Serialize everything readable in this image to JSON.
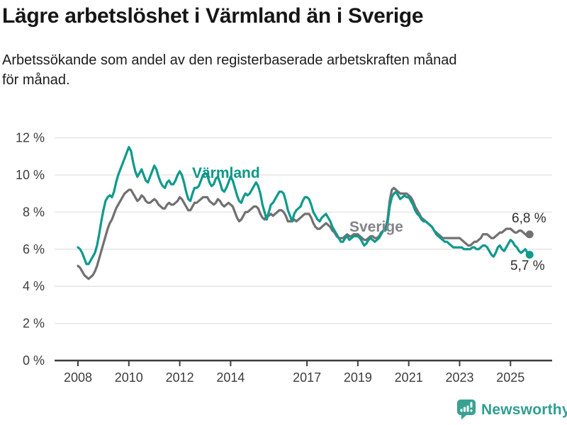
{
  "header": {
    "title": "Lägre arbetslöshet i Värmland än i Sverige",
    "subtitle_line1": "Arbetssökande som andel av den registerbaserade arbetskraften månad",
    "subtitle_line2": "för månad."
  },
  "chart": {
    "series_labels": {
      "varmland": "Värmland",
      "sverige": "Sverige"
    },
    "end_labels": {
      "sverige": "6,8 %",
      "varmland": "5,7 %"
    },
    "y_ticks": [
      {
        "label": "12 %",
        "value": 12
      },
      {
        "label": "10 %",
        "value": 10
      },
      {
        "label": "8 %",
        "value": 8
      },
      {
        "label": "6 %",
        "value": 6
      },
      {
        "label": "4 %",
        "value": 4
      },
      {
        "label": "2 %",
        "value": 2
      },
      {
        "label": "0 %",
        "value": 0
      }
    ],
    "x_ticks": [
      {
        "label": "2008",
        "year": 2008
      },
      {
        "label": "2010",
        "year": 2010
      },
      {
        "label": "2012",
        "year": 2012
      },
      {
        "label": "2014",
        "year": 2014
      },
      {
        "label": "2017",
        "year": 2017
      },
      {
        "label": "2019",
        "year": 2019
      },
      {
        "label": "2021",
        "year": 2021
      },
      {
        "label": "2023",
        "year": 2023
      },
      {
        "label": "2025",
        "year": 2025
      }
    ],
    "colors": {
      "varmland": "#109a8d",
      "sverige": "#717174",
      "grid": "#e2e2e2",
      "axis": "#3d3d3d",
      "text": "#3d3d3d"
    }
  },
  "chart_data": {
    "type": "line",
    "title": "Lägre arbetslöshet i Värmland än i Sverige",
    "subtitle": "Arbetssökande som andel av den registerbaserade arbetskraften månad för månad.",
    "unit": "%",
    "ylim": [
      0,
      12
    ],
    "y_tick_values": [
      0,
      2,
      4,
      6,
      8,
      10,
      12
    ],
    "x_tick_labels": [
      "2008",
      "2010",
      "2012",
      "2014",
      "2017",
      "2019",
      "2021",
      "2023",
      "2025"
    ],
    "frequency": "monthly",
    "period_start": "2008-01",
    "period_end": "2025-10",
    "grid": true,
    "legend_position": "inline-labels",
    "series": [
      {
        "name": "Sverige",
        "color": "#717174",
        "latest_value": 6.8,
        "latest_label": "6,8 %",
        "values": [
          5.1,
          5.0,
          4.8,
          4.6,
          4.5,
          4.4,
          4.5,
          4.6,
          4.8,
          5.1,
          5.5,
          5.9,
          6.3,
          6.7,
          7.1,
          7.4,
          7.6,
          7.9,
          8.2,
          8.4,
          8.6,
          8.8,
          9.0,
          9.1,
          9.2,
          9.2,
          9.0,
          8.8,
          8.6,
          8.7,
          8.9,
          8.8,
          8.6,
          8.5,
          8.5,
          8.6,
          8.7,
          8.6,
          8.4,
          8.3,
          8.2,
          8.2,
          8.4,
          8.5,
          8.4,
          8.4,
          8.5,
          8.6,
          8.8,
          8.7,
          8.5,
          8.3,
          8.1,
          8.1,
          8.3,
          8.5,
          8.5,
          8.6,
          8.7,
          8.8,
          8.8,
          8.8,
          8.6,
          8.5,
          8.4,
          8.5,
          8.7,
          8.6,
          8.4,
          8.3,
          8.4,
          8.5,
          8.4,
          8.3,
          8.0,
          7.7,
          7.5,
          7.6,
          7.8,
          8.0,
          8.0,
          8.1,
          8.2,
          8.3,
          8.3,
          8.2,
          7.9,
          7.7,
          7.6,
          7.8,
          7.8,
          7.9,
          7.8,
          7.9,
          8.0,
          8.1,
          8.1,
          8.0,
          7.8,
          7.5,
          7.5,
          7.5,
          7.6,
          7.5,
          7.6,
          7.7,
          7.8,
          7.9,
          7.9,
          7.9,
          7.7,
          7.4,
          7.2,
          7.1,
          7.1,
          7.2,
          7.3,
          7.4,
          7.3,
          7.2,
          7.0,
          6.9,
          6.7,
          6.6,
          6.6,
          6.6,
          6.7,
          6.8,
          6.7,
          6.7,
          6.8,
          6.8,
          6.8,
          6.7,
          6.6,
          6.5,
          6.5,
          6.6,
          6.7,
          6.7,
          6.6,
          6.6,
          6.7,
          6.9,
          7.0,
          7.1,
          7.6,
          8.6,
          9.2,
          9.3,
          9.2,
          9.1,
          9.0,
          9.0,
          9.0,
          9.0,
          8.9,
          8.8,
          8.6,
          8.3,
          8.1,
          7.9,
          7.7,
          7.6,
          7.5,
          7.4,
          7.3,
          7.2,
          7.0,
          6.9,
          6.8,
          6.7,
          6.6,
          6.6,
          6.6,
          6.6,
          6.6,
          6.6,
          6.6,
          6.6,
          6.6,
          6.5,
          6.4,
          6.3,
          6.2,
          6.2,
          6.3,
          6.4,
          6.4,
          6.5,
          6.6,
          6.8,
          6.8,
          6.8,
          6.7,
          6.6,
          6.6,
          6.7,
          6.8,
          6.9,
          6.9,
          7.0,
          7.1,
          7.1,
          7.1,
          7.0,
          6.9,
          6.9,
          7.0,
          7.0,
          6.9,
          6.8,
          6.7,
          6.8
        ]
      },
      {
        "name": "Värmland",
        "color": "#109a8d",
        "latest_value": 5.7,
        "latest_label": "5,7 %",
        "values": [
          6.1,
          6.0,
          5.8,
          5.5,
          5.2,
          5.2,
          5.4,
          5.6,
          5.8,
          6.2,
          6.8,
          7.5,
          8.1,
          8.6,
          8.8,
          8.9,
          8.8,
          9.1,
          9.6,
          10.0,
          10.3,
          10.6,
          10.9,
          11.2,
          11.5,
          11.3,
          10.7,
          10.2,
          9.9,
          10.1,
          10.3,
          10.0,
          9.7,
          9.6,
          9.9,
          10.2,
          10.5,
          10.3,
          9.9,
          9.6,
          9.4,
          9.3,
          9.6,
          9.7,
          9.5,
          9.5,
          9.7,
          10.0,
          10.2,
          10.0,
          9.6,
          9.1,
          8.7,
          8.6,
          9.0,
          9.3,
          9.3,
          9.4,
          9.7,
          10.0,
          10.1,
          10.0,
          9.6,
          9.4,
          9.5,
          9.8,
          9.9,
          9.6,
          9.2,
          9.1,
          9.3,
          9.6,
          9.9,
          9.7,
          9.3,
          8.9,
          8.6,
          8.5,
          8.8,
          9.0,
          8.9,
          9.0,
          9.2,
          9.4,
          9.6,
          9.4,
          9.0,
          8.4,
          8.0,
          7.6,
          8.0,
          8.4,
          8.5,
          8.7,
          8.9,
          9.1,
          9.1,
          9.0,
          8.6,
          8.1,
          7.8,
          7.5,
          7.9,
          8.1,
          8.2,
          8.3,
          8.6,
          8.8,
          8.8,
          8.7,
          8.4,
          8.0,
          7.8,
          7.6,
          7.5,
          7.7,
          7.8,
          7.9,
          7.7,
          7.5,
          7.2,
          7.0,
          6.8,
          6.6,
          6.4,
          6.4,
          6.6,
          6.7,
          6.5,
          6.6,
          6.7,
          6.7,
          6.7,
          6.6,
          6.4,
          6.2,
          6.3,
          6.5,
          6.6,
          6.5,
          6.4,
          6.5,
          6.6,
          6.8,
          7.0,
          7.0,
          7.4,
          8.3,
          8.8,
          9.0,
          9.1,
          8.9,
          8.7,
          8.8,
          8.9,
          8.8,
          8.8,
          8.6,
          8.4,
          8.1,
          7.9,
          7.8,
          7.6,
          7.5,
          7.5,
          7.4,
          7.3,
          7.2,
          7.0,
          6.8,
          6.7,
          6.6,
          6.5,
          6.4,
          6.4,
          6.3,
          6.2,
          6.1,
          6.1,
          6.1,
          6.1,
          6.1,
          6.0,
          6.0,
          6.0,
          6.0,
          6.1,
          6.1,
          6.0,
          6.0,
          6.1,
          6.2,
          6.2,
          6.1,
          5.9,
          5.7,
          5.6,
          5.8,
          6.1,
          6.2,
          6.0,
          5.9,
          6.1,
          6.3,
          6.5,
          6.4,
          6.2,
          6.1,
          5.9,
          5.8,
          5.9,
          6.0,
          5.8,
          5.7
        ]
      }
    ]
  },
  "footer": {
    "brand": "Newsworthy"
  }
}
